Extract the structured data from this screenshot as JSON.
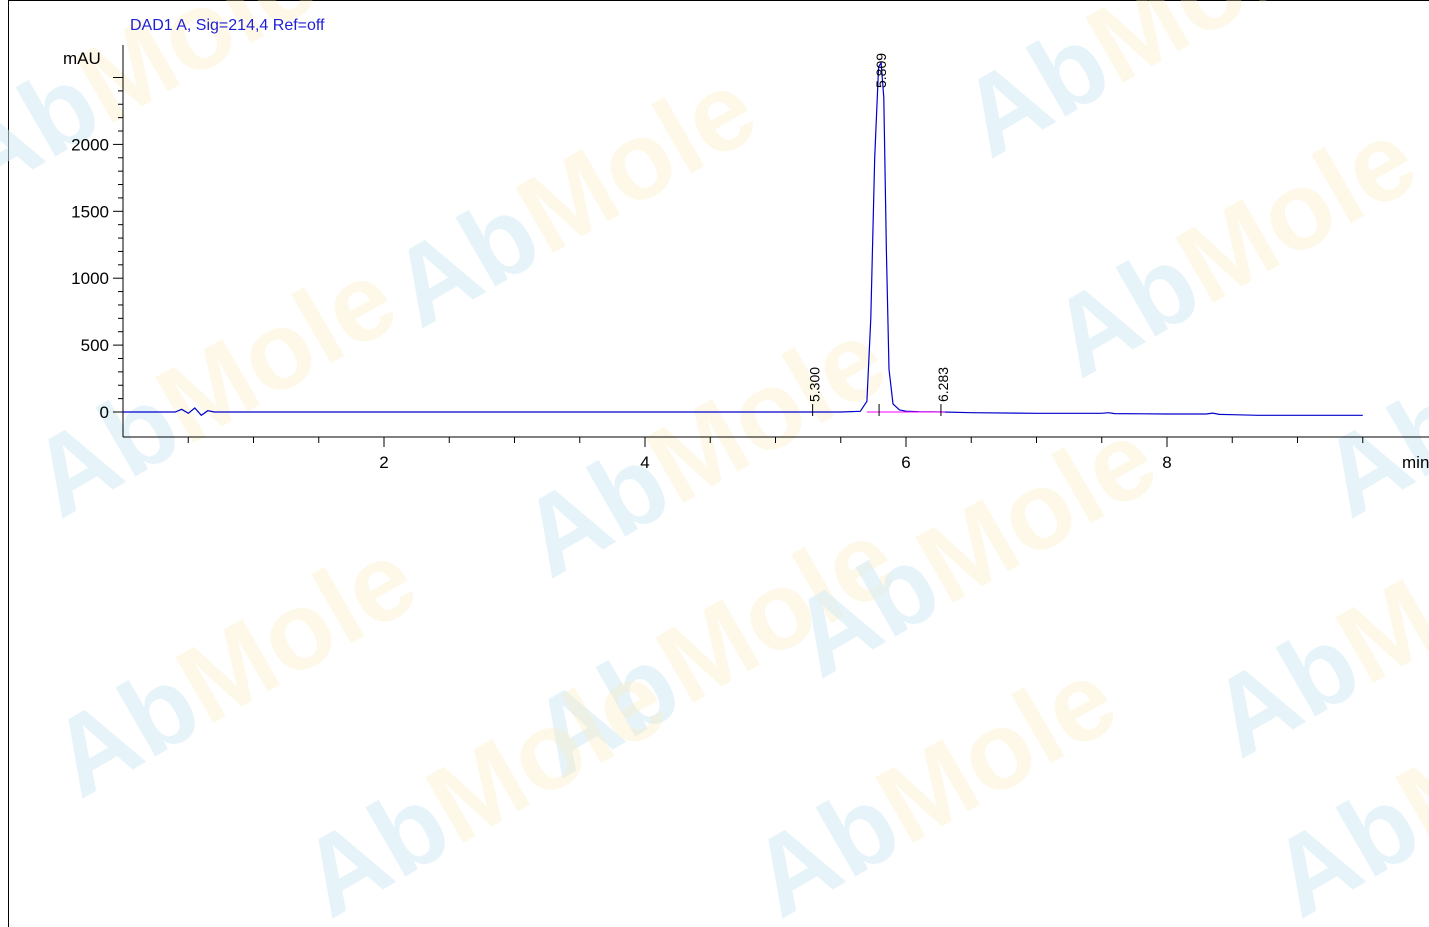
{
  "chart_data": {
    "type": "line",
    "title": "DAD1 A, Sig=214,4 Ref=off",
    "ylabel": "mAU",
    "xlabel": "min",
    "xlim": [
      0,
      9.5
    ],
    "ylim": [
      -180,
      2640
    ],
    "x_ticks": [
      2,
      4,
      6,
      8
    ],
    "y_ticks": [
      0,
      500,
      1000,
      1500,
      2000
    ],
    "series": [
      {
        "color": "#0000cc",
        "x": [
          0,
          0.4,
          0.45,
          0.5,
          0.55,
          0.6,
          0.65,
          0.7,
          1.0,
          2.0,
          3.0,
          4.0,
          5.0,
          5.3,
          5.5,
          5.65,
          5.7,
          5.73,
          5.76,
          5.79,
          5.809,
          5.83,
          5.85,
          5.87,
          5.9,
          5.95,
          6.0,
          6.1,
          6.283,
          6.5,
          7.0,
          7.5,
          7.55,
          7.6,
          8.0,
          8.3,
          8.35,
          8.4,
          8.5,
          8.7,
          9.0,
          9.5
        ],
        "y": [
          0,
          0,
          20,
          -10,
          30,
          -25,
          10,
          0,
          0,
          0,
          0,
          0,
          0,
          0,
          0,
          5,
          80,
          700,
          1900,
          2580,
          2610,
          2350,
          1200,
          320,
          60,
          15,
          6,
          2,
          0,
          -5,
          -10,
          -10,
          -5,
          -12,
          -15,
          -15,
          -8,
          -18,
          -20,
          -25,
          -25,
          -25
        ]
      }
    ],
    "baseline": {
      "color": "#ff00ff",
      "x": [
        5.7,
        6.3
      ],
      "y": [
        0,
        0
      ]
    },
    "peaks": [
      {
        "rt": 5.3,
        "label": "5.300"
      },
      {
        "rt": 5.809,
        "label": "5.809"
      },
      {
        "rt": 6.283,
        "label": "6.283"
      }
    ],
    "grid": false,
    "colors": {
      "title": "#1f1fd6",
      "trace": "#0000cc",
      "baseline": "#ff00ff"
    }
  },
  "watermark": {
    "prefix": "Ab",
    "accent": "Mole"
  }
}
